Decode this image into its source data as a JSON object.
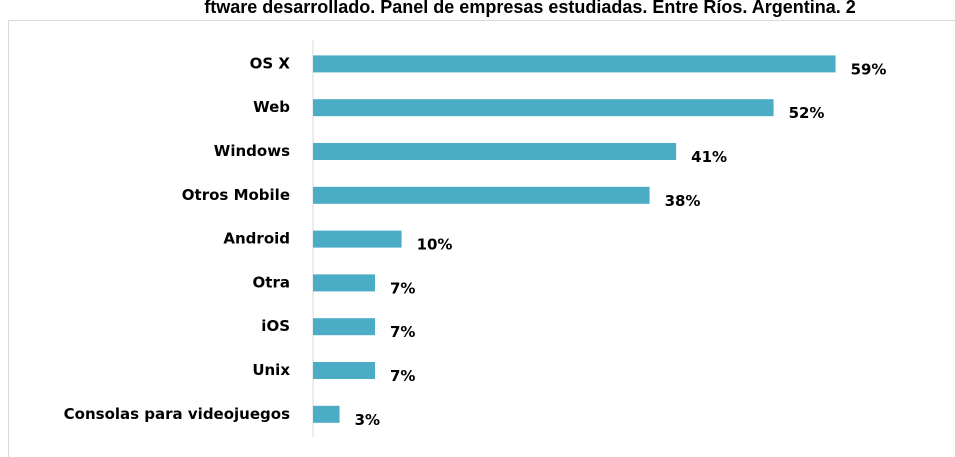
{
  "chart_data": {
    "type": "barh",
    "title": "ftware desarrollado. Panel de empresas estudiadas. Entre Ríos. Argentina. 2",
    "categories": [
      "OS X",
      "Web",
      "Windows",
      "Otros Mobile",
      "Android",
      "Otra",
      "iOS",
      "Unix",
      "Consolas para videojuegos"
    ],
    "values": [
      59,
      52,
      41,
      38,
      10,
      7,
      7,
      7,
      3
    ],
    "value_labels": [
      "59%",
      "52%",
      "41%",
      "38%",
      "10%",
      "7%",
      "7%",
      "7%",
      "3%"
    ],
    "color": "#4bacc6",
    "xlim": [
      0,
      70
    ]
  }
}
